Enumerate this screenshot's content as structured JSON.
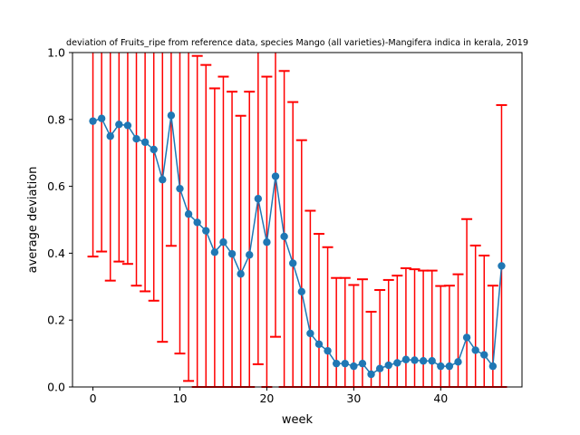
{
  "chart_data": {
    "type": "line",
    "title": "deviation of Fruits_ripe from reference data, species Mango (all varieties)-Mangifera indica in kerala, 2019",
    "xlabel": "week",
    "ylabel": "average deviation",
    "xlim": [
      -2.35,
      49.35
    ],
    "ylim": [
      0,
      1
    ],
    "xticks": [
      0,
      10,
      20,
      30,
      40
    ],
    "yticks": [
      0.0,
      0.2,
      0.4,
      0.6,
      0.8,
      1.0
    ],
    "line_color": "#1f77b4",
    "errorbar_color": "#ff0000",
    "grid": false,
    "series": [
      {
        "x": [
          0,
          1,
          2,
          3,
          4,
          5,
          6,
          7,
          8,
          9,
          10,
          11,
          12,
          13,
          14,
          15,
          16,
          17,
          18,
          19,
          20,
          21,
          22,
          23,
          24,
          25,
          26,
          27,
          28,
          29,
          30,
          31,
          32,
          33,
          34,
          35,
          36,
          37,
          38,
          39,
          40,
          41,
          42,
          43,
          44,
          45,
          46,
          47
        ],
        "y": [
          0.795,
          0.803,
          0.75,
          0.785,
          0.782,
          0.742,
          0.732,
          0.71,
          0.62,
          0.812,
          0.593,
          0.517,
          0.492,
          0.467,
          0.403,
          0.433,
          0.398,
          0.338,
          0.395,
          0.563,
          0.433,
          0.63,
          0.45,
          0.37,
          0.285,
          0.16,
          0.128,
          0.108,
          0.07,
          0.07,
          0.062,
          0.07,
          0.038,
          0.055,
          0.065,
          0.072,
          0.082,
          0.08,
          0.078,
          0.078,
          0.062,
          0.062,
          0.075,
          0.148,
          0.11,
          0.096,
          0.062,
          0.362
        ],
        "err_low": [
          0.39,
          0.405,
          0.318,
          0.375,
          0.368,
          0.303,
          0.286,
          0.258,
          0.135,
          0.422,
          0.1,
          0.018,
          0.0,
          0.0,
          0.0,
          0.0,
          0.0,
          0.0,
          0.0,
          0.068,
          0.0,
          0.15,
          0.0,
          0.0,
          0.0,
          0.0,
          0.0,
          0.0,
          0.0,
          0.0,
          0.0,
          0.0,
          0.0,
          0.0,
          0.0,
          0.0,
          0.0,
          0.0,
          0.0,
          0.0,
          0.0,
          0.0,
          0.0,
          0.0,
          0.0,
          0.0,
          0.0,
          0.0
        ],
        "err_high": [
          1.2,
          1.2,
          1.18,
          1.19,
          1.19,
          1.18,
          1.17,
          1.16,
          1.1,
          1.2,
          1.08,
          1.02,
          0.99,
          0.963,
          0.893,
          0.928,
          0.883,
          0.811,
          0.883,
          1.1,
          0.928,
          1.11,
          0.945,
          0.852,
          0.738,
          0.527,
          0.458,
          0.418,
          0.326,
          0.326,
          0.305,
          0.322,
          0.225,
          0.29,
          0.32,
          0.333,
          0.355,
          0.352,
          0.348,
          0.348,
          0.302,
          0.303,
          0.337,
          0.502,
          0.423,
          0.393,
          0.303,
          0.843
        ]
      }
    ]
  }
}
